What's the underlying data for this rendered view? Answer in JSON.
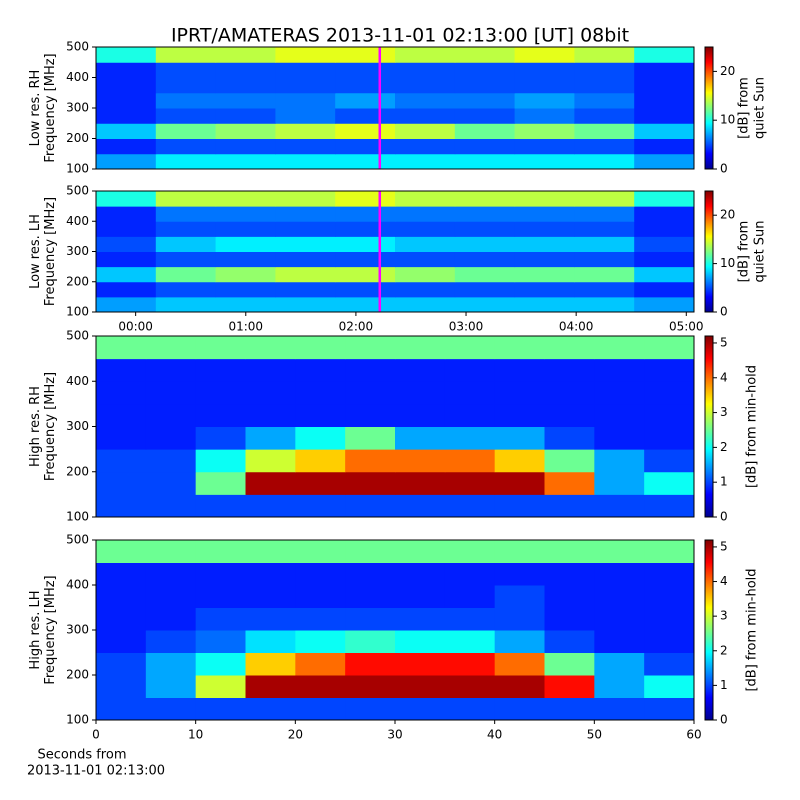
{
  "chart_data": [
    {
      "type": "heatmap",
      "title": "IPRT/AMATERAS 2013-11-01 02:13:00 [UT]   08bit",
      "ylabel_lines": [
        "Low res. RH",
        "Frequency [MHz]"
      ],
      "clabel_lines": [
        "[dB] from",
        "quiet Sun"
      ],
      "xlim": [
        -0.36,
        5.07
      ],
      "ylim": [
        100,
        500
      ],
      "yticks": [
        100,
        200,
        300,
        400,
        500
      ],
      "clim": [
        0,
        25
      ],
      "cticks": [
        0,
        10,
        20
      ],
      "marker_x": 2.2167,
      "marker_color": "#ff00ff",
      "z": [
        [
          7,
          9,
          9,
          9,
          9,
          9,
          9,
          9,
          9,
          7
        ],
        [
          4,
          5,
          5,
          5,
          5,
          5,
          5,
          5,
          5,
          4
        ],
        [
          8,
          12,
          13,
          14,
          15,
          14,
          12,
          13,
          12,
          8
        ],
        [
          4,
          5,
          5,
          6,
          5,
          5,
          5,
          6,
          5,
          4
        ],
        [
          4,
          6,
          6,
          6,
          7,
          6,
          6,
          7,
          6,
          4
        ],
        [
          4,
          5,
          5,
          5,
          5,
          5,
          5,
          5,
          5,
          4
        ],
        [
          4,
          5,
          5,
          5,
          5,
          5,
          5,
          5,
          5,
          4
        ],
        [
          10,
          14,
          14,
          15,
          15,
          14,
          14,
          15,
          14,
          10
        ]
      ]
    },
    {
      "type": "heatmap",
      "ylabel_lines": [
        "Low res. LH",
        "Frequency [MHz]"
      ],
      "clabel_lines": [
        "[dB] from",
        "quiet Sun"
      ],
      "xlim": [
        -0.36,
        5.07
      ],
      "ylim": [
        100,
        500
      ],
      "yticks": [
        100,
        200,
        300,
        400,
        500
      ],
      "xticks": [
        {
          "value": 0,
          "label": "00:00"
        },
        {
          "value": 1,
          "label": "01:00"
        },
        {
          "value": 2,
          "label": "02:00"
        },
        {
          "value": 3,
          "label": "03:00"
        },
        {
          "value": 4,
          "label": "04:00"
        },
        {
          "value": 5,
          "label": "05:00"
        }
      ],
      "clim": [
        0,
        25
      ],
      "cticks": [
        0,
        10,
        20
      ],
      "marker_x": 2.2167,
      "marker_color": "#ff00ff",
      "z": [
        [
          7,
          8,
          8,
          8,
          8,
          8,
          8,
          8,
          8,
          7
        ],
        [
          4,
          5,
          5,
          5,
          5,
          5,
          5,
          5,
          5,
          4
        ],
        [
          8,
          12,
          13,
          14,
          14,
          13,
          12,
          12,
          12,
          8
        ],
        [
          4,
          5,
          5,
          5,
          5,
          5,
          5,
          5,
          5,
          4
        ],
        [
          5,
          8,
          9,
          9,
          9,
          8,
          8,
          8,
          8,
          5
        ],
        [
          4,
          5,
          5,
          5,
          5,
          5,
          5,
          5,
          5,
          4
        ],
        [
          4,
          6,
          6,
          6,
          6,
          6,
          6,
          6,
          6,
          4
        ],
        [
          10,
          14,
          14,
          14,
          15,
          14,
          14,
          14,
          14,
          10
        ]
      ]
    },
    {
      "type": "heatmap",
      "ylabel_lines": [
        "High res. RH",
        "Frequency [MHz]"
      ],
      "clabel_lines": [
        "[dB] from min-hold"
      ],
      "xlim": [
        0,
        60
      ],
      "ylim": [
        100,
        500
      ],
      "yticks": [
        100,
        200,
        300,
        400,
        500
      ],
      "clim": [
        0,
        5.2
      ],
      "cticks": [
        0,
        1,
        2,
        3,
        4,
        5
      ],
      "z": [
        [
          1,
          1,
          1,
          1,
          1,
          1,
          1,
          1,
          1,
          1,
          1,
          1
        ],
        [
          1,
          1,
          2.5,
          5,
          5,
          5,
          5,
          5,
          5,
          4,
          1.5,
          2
        ],
        [
          1,
          1,
          2,
          3,
          3.5,
          4,
          4,
          4,
          3.5,
          2.5,
          1.5,
          1
        ],
        [
          0.8,
          0.8,
          1,
          1.5,
          2,
          2.5,
          1.5,
          1.5,
          1.5,
          1,
          0.8,
          0.8
        ],
        [
          0.8,
          0.8,
          0.8,
          0.8,
          0.8,
          0.8,
          0.8,
          0.8,
          0.8,
          0.8,
          0.8,
          0.8
        ],
        [
          0.8,
          0.8,
          0.8,
          0.8,
          0.8,
          0.8,
          0.8,
          0.8,
          0.8,
          0.8,
          0.8,
          0.8
        ],
        [
          0.8,
          0.8,
          0.8,
          0.8,
          0.8,
          0.8,
          0.8,
          0.8,
          0.8,
          0.8,
          0.8,
          0.8
        ],
        [
          2.5,
          2.5,
          2.5,
          2.5,
          2.5,
          2.5,
          2.5,
          2.5,
          2.5,
          2.5,
          2.5,
          2.5
        ]
      ]
    },
    {
      "type": "heatmap",
      "ylabel_lines": [
        "High res. LH",
        "Frequency [MHz]"
      ],
      "clabel_lines": [
        "[dB] from min-hold"
      ],
      "xlabel_lines": [
        "Seconds from",
        "2013-11-01 02:13:00"
      ],
      "xlim": [
        0,
        60
      ],
      "ylim": [
        100,
        500
      ],
      "yticks": [
        100,
        200,
        300,
        400,
        500
      ],
      "xticks": [
        0,
        10,
        20,
        30,
        40,
        50,
        60
      ],
      "clim": [
        0,
        5.2
      ],
      "cticks": [
        0,
        1,
        2,
        3,
        4,
        5
      ],
      "z": [
        [
          1,
          1,
          1,
          1,
          1,
          1,
          1,
          1,
          1,
          1,
          1,
          1
        ],
        [
          1,
          1.5,
          3,
          5,
          5,
          5,
          5,
          5,
          5,
          4.5,
          1.5,
          2
        ],
        [
          1,
          1.5,
          2,
          3.5,
          4,
          4.5,
          4.5,
          4.5,
          4,
          2.5,
          1.5,
          1
        ],
        [
          0.8,
          1,
          1.2,
          1.8,
          2,
          2.2,
          2,
          2,
          1.5,
          1,
          0.8,
          0.8
        ],
        [
          0.8,
          0.8,
          1,
          1,
          1,
          1,
          1,
          1,
          1,
          0.8,
          0.8,
          0.8
        ],
        [
          0.8,
          0.8,
          0.8,
          0.8,
          0.8,
          0.8,
          0.8,
          0.8,
          1,
          0.8,
          0.8,
          0.8
        ],
        [
          0.8,
          0.8,
          0.8,
          0.8,
          0.8,
          0.8,
          0.8,
          0.8,
          0.8,
          0.8,
          0.8,
          0.8
        ],
        [
          2.5,
          2.5,
          2.5,
          2.5,
          2.5,
          2.5,
          2.5,
          2.5,
          2.5,
          2.5,
          2.5,
          2.5
        ]
      ]
    }
  ]
}
